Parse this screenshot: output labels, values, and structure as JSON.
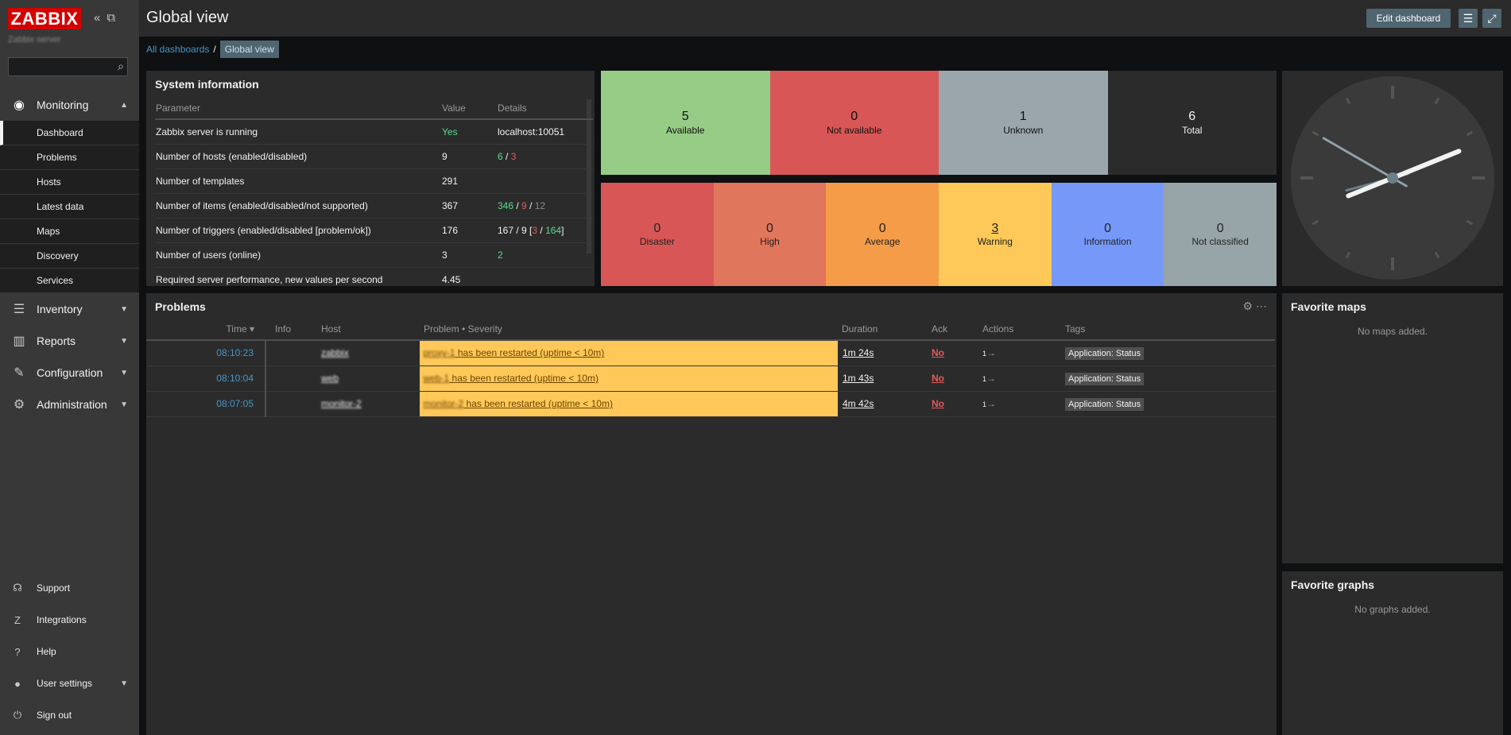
{
  "app": {
    "logo": "ZABBIX",
    "server_name": "Zabbix server"
  },
  "header": {
    "title": "Global view",
    "edit_button": "Edit dashboard"
  },
  "breadcrumb": {
    "all": "All dashboards",
    "sep": "/",
    "current": "Global view"
  },
  "sidebar": {
    "sections": [
      {
        "label": "Monitoring",
        "icon": "eye-icon",
        "expanded": true
      },
      {
        "label": "Inventory",
        "icon": "list-icon"
      },
      {
        "label": "Reports",
        "icon": "bar-chart-icon"
      },
      {
        "label": "Configuration",
        "icon": "wrench-icon"
      },
      {
        "label": "Administration",
        "icon": "gear-icon"
      }
    ],
    "monitoring_items": [
      "Dashboard",
      "Problems",
      "Hosts",
      "Latest data",
      "Maps",
      "Discovery",
      "Services"
    ],
    "bottom": [
      {
        "label": "Support",
        "icon": "headset-icon"
      },
      {
        "label": "Integrations",
        "icon": "z-icon"
      },
      {
        "label": "Help",
        "icon": "question-icon"
      },
      {
        "label": "User settings",
        "icon": "user-icon"
      },
      {
        "label": "Sign out",
        "icon": "power-icon"
      }
    ]
  },
  "sysinfo": {
    "title": "System information",
    "headers": [
      "Parameter",
      "Value",
      "Details"
    ],
    "rows": [
      {
        "param": "Zabbix server is running",
        "value": "Yes",
        "details": "localhost:10051"
      },
      {
        "param": "Number of hosts (enabled/disabled)",
        "value": "9",
        "d1": "6",
        "d2": "3"
      },
      {
        "param": "Number of templates",
        "value": "291"
      },
      {
        "param": "Number of items (enabled/disabled/not supported)",
        "value": "367",
        "d1": "346",
        "d2": "9",
        "d3": "12"
      },
      {
        "param": "Number of triggers (enabled/disabled [problem/ok])",
        "value": "176",
        "d1": "167 / 9 [",
        "d2": "3",
        "d3": "164",
        "d4": "]"
      },
      {
        "param": "Number of users (online)",
        "value": "3",
        "d1": "2"
      },
      {
        "param": "Required server performance, new values per second",
        "value": "4.45"
      }
    ]
  },
  "host_availability": [
    {
      "num": "5",
      "label": "Available",
      "color": "#97cc86"
    },
    {
      "num": "0",
      "label": "Not available",
      "color": "#d95656"
    },
    {
      "num": "1",
      "label": "Unknown",
      "color": "#9aa6ab"
    },
    {
      "num": "6",
      "label": "Total",
      "color": "#2b2b2b"
    }
  ],
  "severity": [
    {
      "num": "0",
      "label": "Disaster",
      "color": "#d95656"
    },
    {
      "num": "0",
      "label": "High",
      "color": "#e0765b"
    },
    {
      "num": "0",
      "label": "Average",
      "color": "#f59c48"
    },
    {
      "num": "3",
      "label": "Warning",
      "color": "#fec958"
    },
    {
      "num": "0",
      "label": "Information",
      "color": "#7699f9"
    },
    {
      "num": "0",
      "label": "Not classified",
      "color": "#97a5a9"
    }
  ],
  "clock": {
    "hour_deg": 255,
    "minute_deg": 300,
    "second_deg": 68
  },
  "problems": {
    "title": "Problems",
    "headers": [
      "Time ▾",
      "Info",
      "Host",
      "Problem • Severity",
      "Duration",
      "Ack",
      "Actions",
      "Tags"
    ],
    "rows": [
      {
        "time": "08:10:23",
        "host": "zabbix",
        "problem_host": "proxy-1",
        "problem": " has been restarted (uptime < 10m)",
        "duration": "1m 24s",
        "ack": "No",
        "actions": "1",
        "tag": "Application: Status"
      },
      {
        "time": "08:10:04",
        "host": "web",
        "problem_host": "web-1",
        "problem": " has been restarted (uptime < 10m)",
        "duration": "1m 43s",
        "ack": "No",
        "actions": "1",
        "tag": "Application: Status"
      },
      {
        "time": "08:07:05",
        "host": "monitor-2",
        "problem_host": "monitor-2",
        "problem": " has been restarted (uptime < 10m)",
        "duration": "4m 42s",
        "ack": "No",
        "actions": "1",
        "tag": "Application: Status"
      }
    ]
  },
  "fav_maps": {
    "title": "Favorite maps",
    "empty": "No maps added."
  },
  "fav_graphs": {
    "title": "Favorite graphs",
    "empty": "No graphs added."
  }
}
